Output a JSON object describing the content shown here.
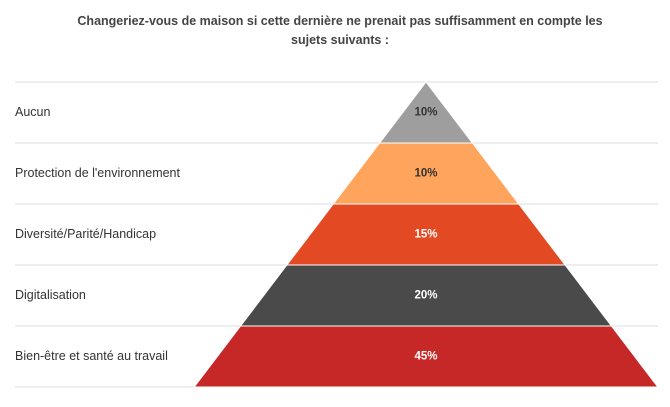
{
  "chart_data": {
    "type": "bar",
    "subtype": "pyramid",
    "title": "Changeriez-vous de maison si cette dernière ne prenait pas suffisamment en compte les sujets suivants :",
    "categories": [
      "Aucun",
      "Protection de l'environnement",
      "Diversité/Parité/Handicap",
      "Digitalisation",
      "Bien-être et santé au travail"
    ],
    "values": [
      10,
      10,
      15,
      20,
      45
    ],
    "value_labels": [
      "10%",
      "10%",
      "15%",
      "20%",
      "45%"
    ],
    "unit": "%",
    "colors": [
      "#9e9e9e",
      "#ffa45c",
      "#e34a24",
      "#4a4a4a",
      "#c62828"
    ],
    "label_colors": [
      "#333333",
      "#333333",
      "#ffffff",
      "#ffffff",
      "#ffffff"
    ],
    "grid": true,
    "legend": "none"
  }
}
